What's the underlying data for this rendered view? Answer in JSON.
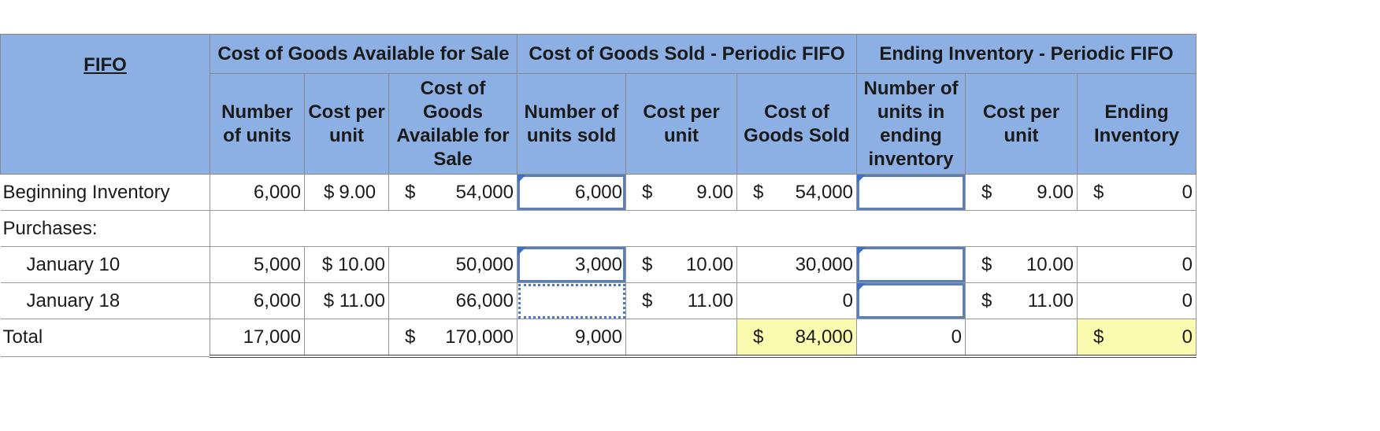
{
  "header": {
    "fifo": "FIFO",
    "groups": [
      "Cost of Goods Available for Sale",
      "Cost of Goods Sold - Periodic FIFO",
      "Ending Inventory - Periodic FIFO"
    ],
    "columns": [
      "Number of units",
      "Cost per unit",
      "Cost of Goods Available for Sale",
      "Number of units sold",
      "Cost per unit",
      "Cost of Goods Sold",
      "Number of units in ending inventory",
      "Cost per unit",
      "Ending Inventory"
    ]
  },
  "rows": {
    "beginning": {
      "label": "Beginning Inventory",
      "units": "6,000",
      "cpu_sym": "$",
      "cpu": "9.00",
      "cogas_sym": "$",
      "cogas": "54,000",
      "sold_units": "6,000",
      "sold_cpu_sym": "$",
      "sold_cpu": "9.00",
      "cogs_sym": "$",
      "cogs": "54,000",
      "ei_units": "",
      "ei_cpu_sym": "$",
      "ei_cpu": "9.00",
      "ei_sym": "$",
      "ei": "0"
    },
    "purchases": {
      "label": "Purchases:"
    },
    "jan10": {
      "label": "January 10",
      "units": "5,000",
      "cpu": "$ 10.00",
      "cogas": "50,000",
      "sold_units": "3,000",
      "sold_cpu_sym": "$",
      "sold_cpu": "10.00",
      "cogs": "30,000",
      "ei_units": "",
      "ei_cpu_sym": "$",
      "ei_cpu": "10.00",
      "ei": "0"
    },
    "jan18": {
      "label": "January 18",
      "units": "6,000",
      "cpu": "$ 11.00",
      "cogas": "66,000",
      "sold_units": "",
      "sold_cpu_sym": "$",
      "sold_cpu": "11.00",
      "cogs": "0",
      "ei_units": "",
      "ei_cpu_sym": "$",
      "ei_cpu": "11.00",
      "ei": "0"
    },
    "total": {
      "label": "Total",
      "units": "17,000",
      "cogas_sym": "$",
      "cogas": "170,000",
      "sold_units": "9,000",
      "cogs_sym": "$",
      "cogs": "84,000",
      "ei_units": "0",
      "ei_sym": "$",
      "ei": "0"
    }
  },
  "colors": {
    "header_bg": "#8cb0e4",
    "highlight": "#fcfcb0",
    "input_border": "#5b7fb9"
  }
}
